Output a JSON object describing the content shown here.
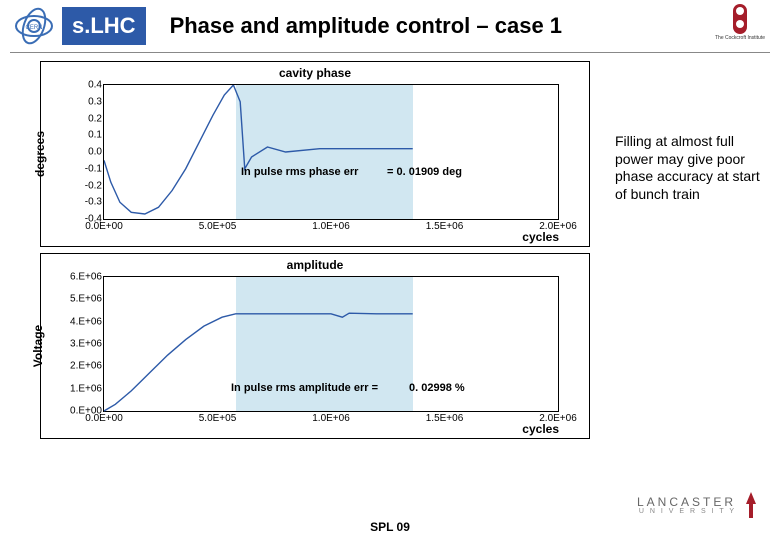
{
  "header": {
    "badge": "s.LHC",
    "title": "Phase and amplitude control – case 1",
    "left_logo_text": "CERN",
    "right_logo_text": "The Cockcroft Institute"
  },
  "note": "Filling at almost full power may give poor phase accuracy at start of bunch train",
  "chart1": {
    "type": "line",
    "title": "cavity phase",
    "ylabel": "degrees",
    "xlabel": "cycles",
    "ylim": [
      -0.4,
      0.4
    ],
    "yticks": [
      "0.4",
      "0.3",
      "0.2",
      "0.1",
      "0.0",
      "-0.1",
      "-0.2",
      "-0.3",
      "-0.4"
    ],
    "xlim": [
      0,
      2000000.0
    ],
    "xticks": [
      "0.0E+00",
      "5.0E+05",
      "1.0E+06",
      "1.5E+06",
      "2.0E+06"
    ],
    "line_color": "#2d5aa8",
    "line_width": 1.4,
    "shade_xrange": [
      580000.0,
      1360000.0
    ],
    "shade_color": "#cce4f0",
    "annotation_label": "In pulse rms phase err",
    "annotation_value": "=  0. 01909 deg",
    "points": [
      [
        0.0,
        -0.05
      ],
      [
        30000.0,
        -0.18
      ],
      [
        70000.0,
        -0.3
      ],
      [
        120000.0,
        -0.36
      ],
      [
        180000.0,
        -0.37
      ],
      [
        240000.0,
        -0.33
      ],
      [
        300000.0,
        -0.23
      ],
      [
        360000.0,
        -0.1
      ],
      [
        420000.0,
        0.06
      ],
      [
        480000.0,
        0.22
      ],
      [
        530000.0,
        0.34
      ],
      [
        570000.0,
        0.4
      ],
      [
        600000.0,
        0.3
      ],
      [
        620000.0,
        -0.1
      ],
      [
        650000.0,
        -0.03
      ],
      [
        720000.0,
        0.03
      ],
      [
        800000.0,
        0.0
      ],
      [
        950000.0,
        0.02
      ],
      [
        1050000.0,
        0.02
      ],
      [
        1200000.0,
        0.02
      ],
      [
        1360000.0,
        0.02
      ]
    ]
  },
  "chart2": {
    "type": "line",
    "title": "amplitude",
    "ylabel": "Voltage",
    "xlabel": "cycles",
    "ylim": [
      0,
      6000000.0
    ],
    "yticks": [
      "6.E+06",
      "5.E+06",
      "4.E+06",
      "3.E+06",
      "2.E+06",
      "1.E+06",
      "0.E+00"
    ],
    "xlim": [
      0,
      2000000.0
    ],
    "xticks": [
      "0.0E+00",
      "5.0E+05",
      "1.0E+06",
      "1.5E+06",
      "2.0E+06"
    ],
    "line_color": "#2d5aa8",
    "line_width": 1.4,
    "shade_xrange": [
      580000.0,
      1360000.0
    ],
    "shade_color": "#cce4f0",
    "annotation_label": "In pulse rms amplitude err =",
    "annotation_value": "0. 02998 %",
    "points": [
      [
        0.0,
        0.0
      ],
      [
        50000.0,
        300000.0
      ],
      [
        120000.0,
        900000.0
      ],
      [
        200000.0,
        1700000.0
      ],
      [
        280000.0,
        2500000.0
      ],
      [
        360000.0,
        3200000.0
      ],
      [
        440000.0,
        3800000.0
      ],
      [
        520000.0,
        4200000.0
      ],
      [
        580000.0,
        4350000.0
      ],
      [
        620000.0,
        4350000.0
      ],
      [
        800000.0,
        4350000.0
      ],
      [
        1000000.0,
        4350000.0
      ],
      [
        1050000.0,
        4200000.0
      ],
      [
        1080000.0,
        4380000.0
      ],
      [
        1200000.0,
        4350000.0
      ],
      [
        1360000.0,
        4350000.0
      ]
    ]
  },
  "footer": "SPL 09",
  "lancaster": "LANCASTER",
  "lancaster_sub": "U N I V E R S I T Y",
  "colors": {
    "badge_bg": "#2d5aa8",
    "text": "#000000",
    "background": "#ffffff",
    "grid": "#000000"
  },
  "fonts": {
    "title_pt": 22,
    "axis_pt": 12,
    "tick_pt": 10,
    "note_pt": 14
  }
}
